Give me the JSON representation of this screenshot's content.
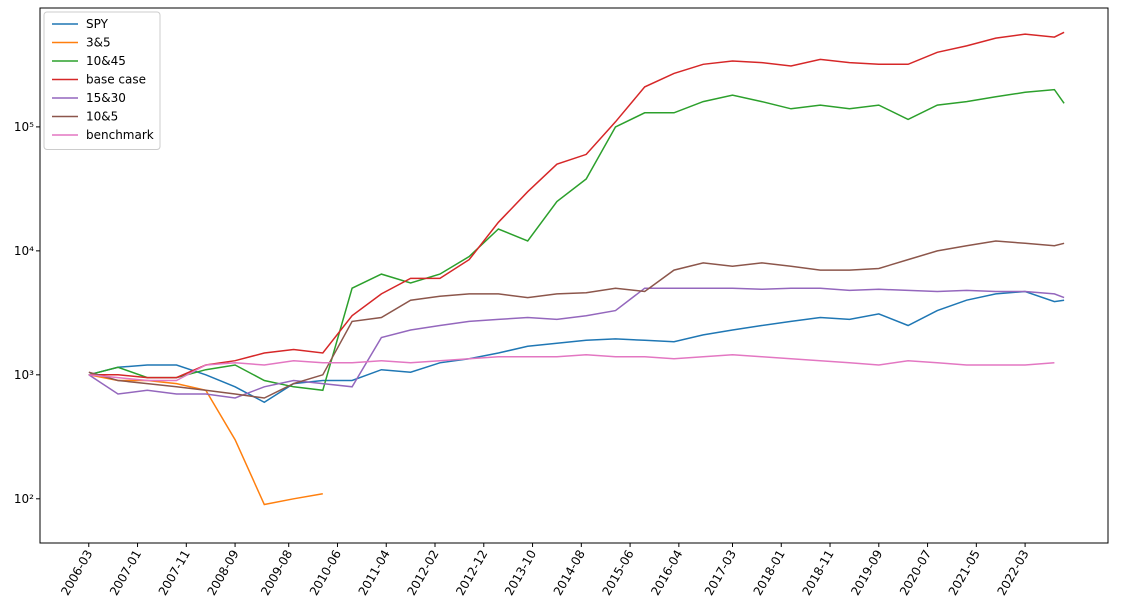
{
  "chart_data": {
    "type": "line",
    "log_scale": true,
    "legend": "upper left",
    "xlim": [
      "2005-05",
      "2023-08"
    ],
    "ylim": [
      44,
      910000
    ],
    "yticks": [
      {
        "value": 100,
        "label": "10²"
      },
      {
        "value": 1000,
        "label": "10³"
      },
      {
        "value": 10000,
        "label": "10⁴"
      },
      {
        "value": 100000,
        "label": "10⁵"
      }
    ],
    "xticks": [
      "2006-03",
      "2007-01",
      "2007-11",
      "2008-09",
      "2009-08",
      "2010-06",
      "2011-04",
      "2012-02",
      "2012-12",
      "2013-10",
      "2014-08",
      "2015-06",
      "2016-04",
      "2017-03",
      "2018-01",
      "2018-11",
      "2019-09",
      "2020-07",
      "2021-05",
      "2022-03"
    ],
    "x": [
      "2006-03",
      "2006-09",
      "2007-03",
      "2007-09",
      "2008-03",
      "2008-09",
      "2009-03",
      "2009-09",
      "2010-03",
      "2010-09",
      "2011-03",
      "2011-09",
      "2012-03",
      "2012-09",
      "2013-03",
      "2013-09",
      "2014-03",
      "2014-09",
      "2015-03",
      "2015-09",
      "2016-03",
      "2016-09",
      "2017-03",
      "2017-09",
      "2018-03",
      "2018-09",
      "2019-03",
      "2019-09",
      "2020-03",
      "2020-09",
      "2021-03",
      "2021-09",
      "2022-03",
      "2022-09",
      "2022-11"
    ],
    "series": [
      {
        "name": "SPY",
        "color": "#1f77b4",
        "values": [
          1000,
          1150,
          1200,
          1200,
          1000,
          800,
          600,
          850,
          900,
          900,
          1100,
          1050,
          1250,
          1350,
          1500,
          1700,
          1800,
          1900,
          1950,
          1900,
          1850,
          2100,
          2300,
          2500,
          2700,
          2900,
          2800,
          3100,
          2500,
          3300,
          4000,
          4500,
          4700,
          3900,
          4000
        ]
      },
      {
        "name": "3&5",
        "color": "#ff7f0e",
        "values": [
          1000,
          900,
          900,
          850,
          750,
          300,
          90,
          100,
          110,
          null,
          null,
          null,
          null,
          null,
          null,
          null,
          null,
          null,
          null,
          null,
          null,
          null,
          null,
          null,
          null,
          null,
          null,
          null,
          null,
          null,
          null,
          null,
          null,
          null,
          null
        ]
      },
      {
        "name": "10&45",
        "color": "#2ca02c",
        "values": [
          1000,
          1150,
          950,
          950,
          1100,
          1200,
          900,
          800,
          750,
          5000,
          6500,
          5500,
          6500,
          9000,
          15000,
          12000,
          25000,
          38000,
          100000,
          130000,
          130000,
          160000,
          180000,
          160000,
          140000,
          150000,
          140000,
          150000,
          115000,
          150000,
          160000,
          175000,
          190000,
          200000,
          155000
        ]
      },
      {
        "name": "base case",
        "color": "#d62728",
        "values": [
          1000,
          1000,
          950,
          950,
          1200,
          1300,
          1500,
          1600,
          1500,
          3000,
          4500,
          6000,
          6000,
          8500,
          17000,
          30000,
          50000,
          60000,
          110000,
          210000,
          270000,
          320000,
          340000,
          330000,
          310000,
          350000,
          330000,
          320000,
          320000,
          400000,
          450000,
          520000,
          560000,
          530000,
          580000
        ]
      },
      {
        "name": "15&30",
        "color": "#9467bd",
        "values": [
          1000,
          700,
          750,
          700,
          700,
          650,
          800,
          900,
          850,
          800,
          2000,
          2300,
          2500,
          2700,
          2800,
          2900,
          2800,
          3000,
          3300,
          5000,
          5000,
          5000,
          5000,
          4900,
          5000,
          5000,
          4800,
          4900,
          4800,
          4700,
          4800,
          4700,
          4700,
          4500,
          4200
        ]
      },
      {
        "name": "10&5",
        "color": "#8c564b",
        "values": [
          1050,
          900,
          850,
          800,
          750,
          700,
          650,
          850,
          1000,
          2700,
          2900,
          4000,
          4300,
          4500,
          4500,
          4200,
          4500,
          4600,
          5000,
          4700,
          7000,
          8000,
          7500,
          8000,
          7500,
          7000,
          7000,
          7200,
          8500,
          10000,
          11000,
          12000,
          11500,
          11000,
          11500
        ]
      },
      {
        "name": "benchmark",
        "color": "#e377c2",
        "values": [
          1000,
          950,
          900,
          900,
          1200,
          1250,
          1200,
          1300,
          1250,
          1250,
          1300,
          1250,
          1300,
          1350,
          1400,
          1400,
          1400,
          1450,
          1400,
          1400,
          1350,
          1400,
          1450,
          1400,
          1350,
          1300,
          1250,
          1200,
          1300,
          1250,
          1200,
          1200,
          1200,
          1250,
          null
        ]
      }
    ]
  }
}
